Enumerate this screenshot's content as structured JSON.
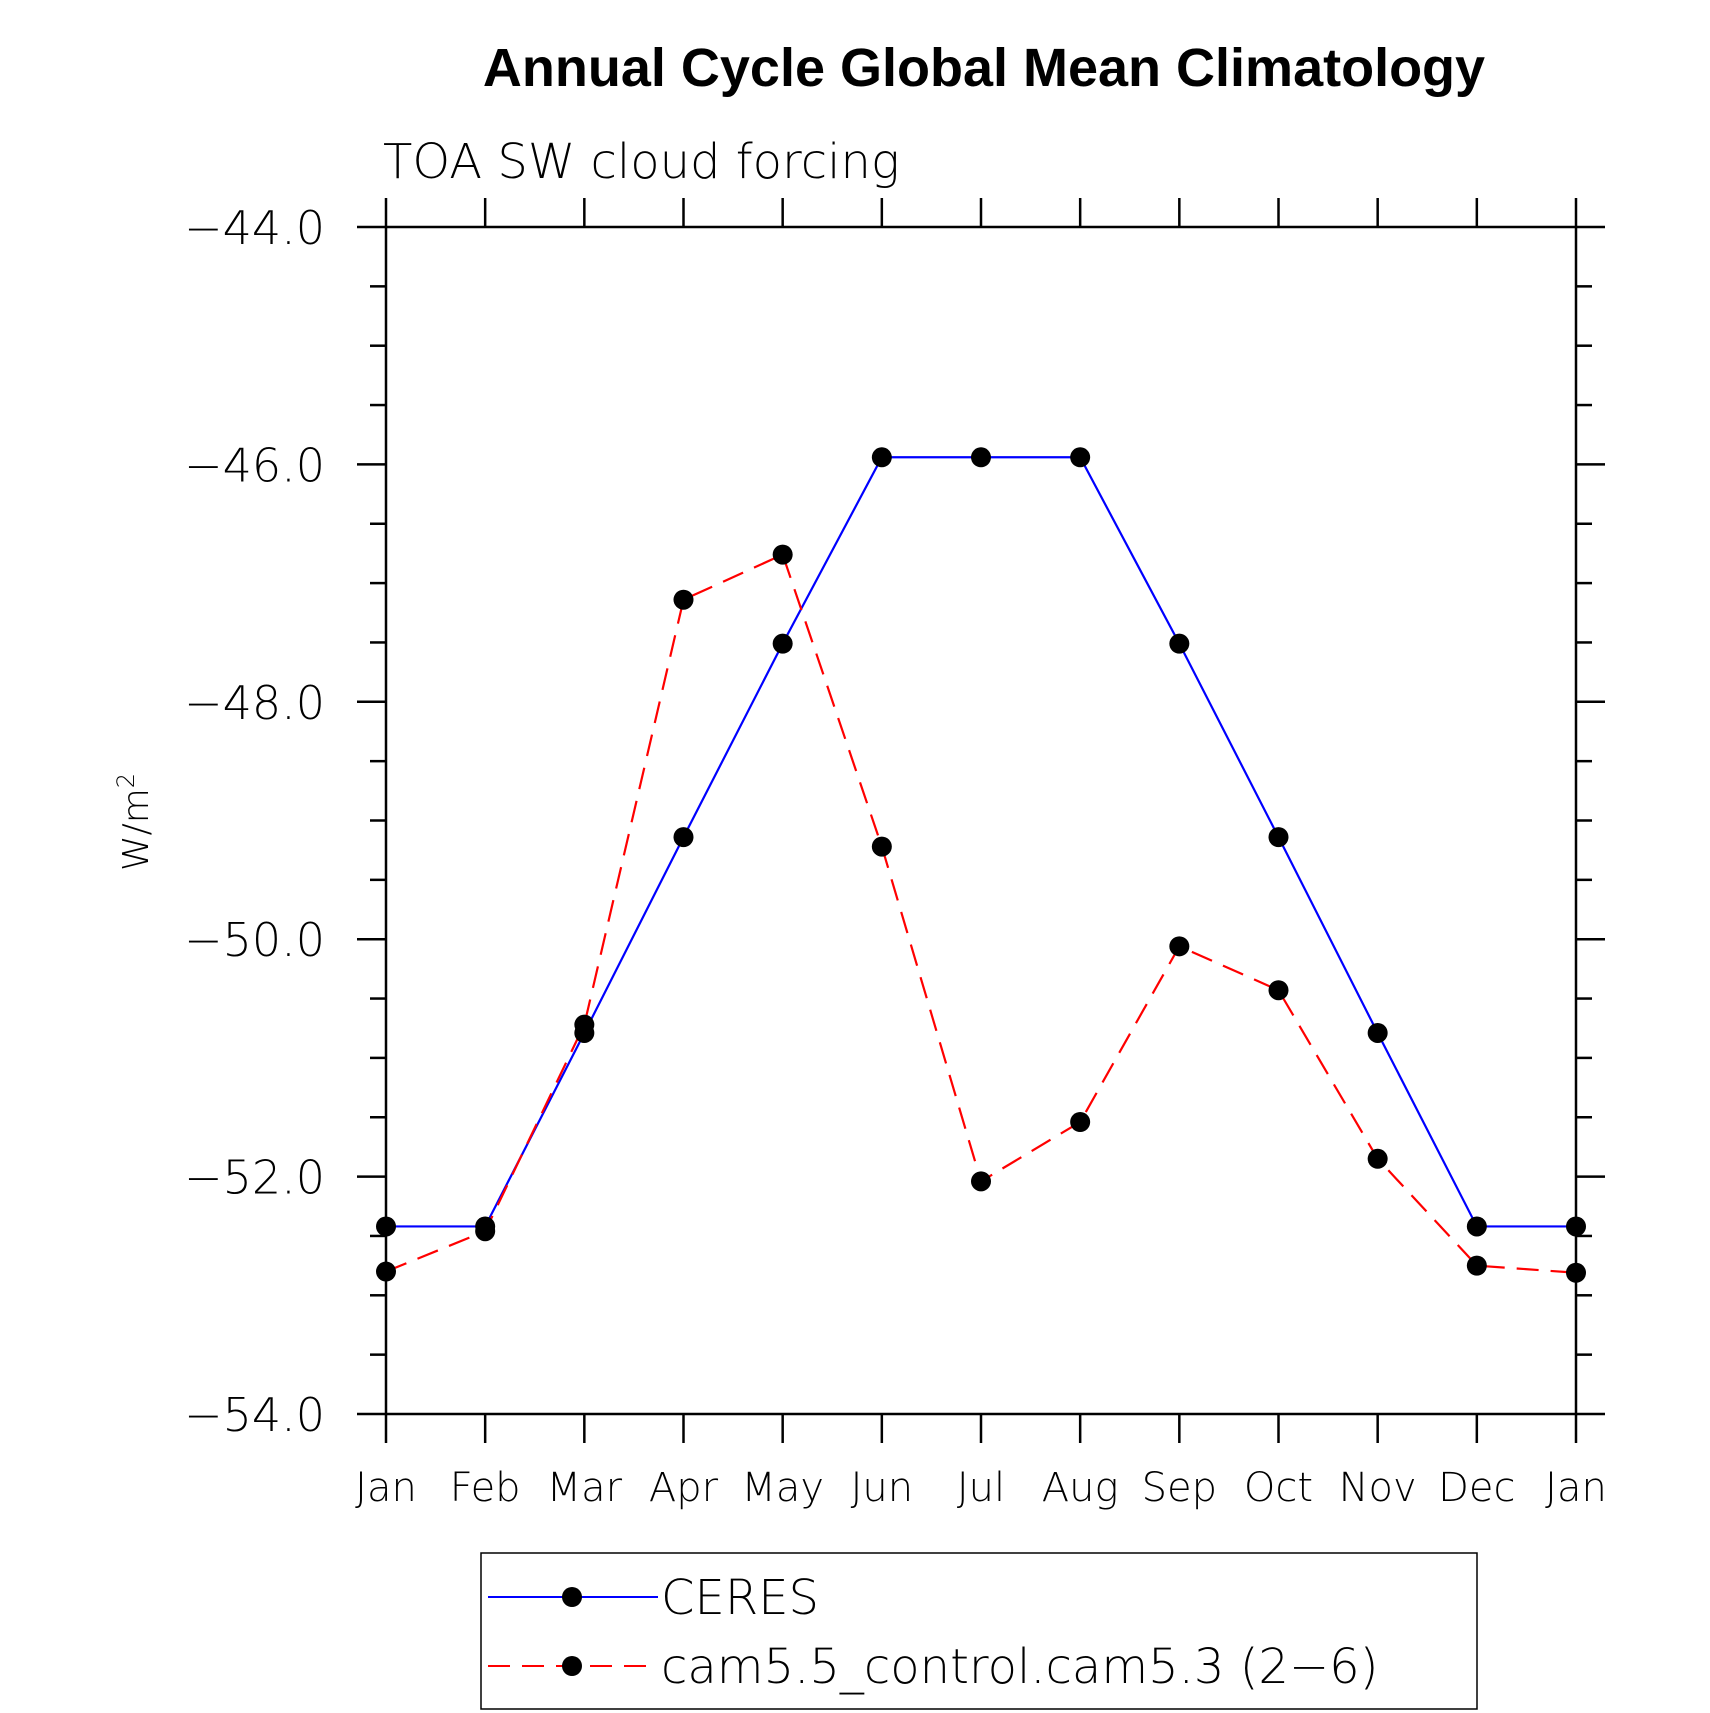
{
  "chart_data": {
    "type": "line",
    "title": "Annual Cycle Global Mean Climatology",
    "subtitle": "TOA SW cloud forcing",
    "ylabel": "W/m",
    "ylabel_superscript": "2",
    "xlabel": "",
    "categories": [
      "Jan",
      "Feb",
      "Mar",
      "Apr",
      "May",
      "Jun",
      "Jul",
      "Aug",
      "Sep",
      "Oct",
      "Nov",
      "Dec",
      "Jan"
    ],
    "ylim": [
      -54.0,
      -44.0
    ],
    "yticks": [
      -54.0,
      -52.0,
      -50.0,
      -48.0,
      -46.0,
      -44.0
    ],
    "ytick_labels": [
      "−54.0",
      "−52.0",
      "−50.0",
      "−48.0",
      "−46.0",
      "−44.0"
    ],
    "series": [
      {
        "name": "CERES",
        "color": "#0000ff",
        "dash": "solid",
        "values": [
          -52.42,
          -52.42,
          -50.79,
          -49.14,
          -47.51,
          -45.94,
          -45.94,
          -45.94,
          -47.51,
          -49.14,
          -50.79,
          -52.42,
          -52.42
        ]
      },
      {
        "name": "cam5.5_control.cam5.3 (2−6)",
        "color": "#ff0000",
        "dash": "dashed",
        "values": [
          -52.8,
          -52.46,
          -50.72,
          -47.14,
          -46.76,
          -49.22,
          -52.04,
          -51.54,
          -50.06,
          -50.43,
          -51.85,
          -52.75,
          -52.81
        ]
      }
    ],
    "legend_position": "bottom-center"
  }
}
